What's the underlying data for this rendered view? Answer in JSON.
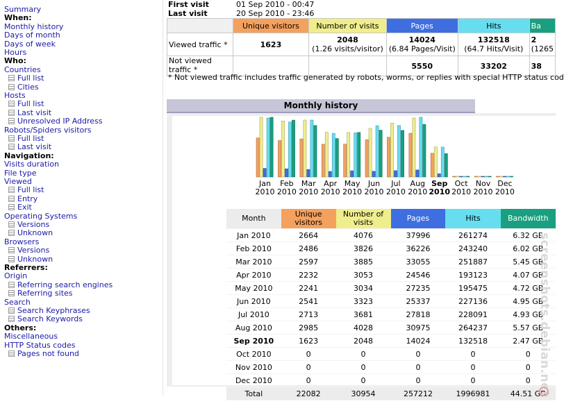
{
  "sidebar": {
    "items": [
      {
        "label": "Summary",
        "type": "link",
        "indent": 0
      },
      {
        "label": "When:",
        "type": "section",
        "indent": 0
      },
      {
        "label": "Monthly history",
        "type": "link",
        "indent": 0
      },
      {
        "label": "Days of month",
        "type": "link",
        "indent": 0
      },
      {
        "label": "Days of week",
        "type": "link",
        "indent": 0
      },
      {
        "label": "Hours",
        "type": "link",
        "indent": 0
      },
      {
        "label": "Who:",
        "type": "section",
        "indent": 0
      },
      {
        "label": "Countries",
        "type": "link",
        "indent": 0
      },
      {
        "label": "Full list",
        "type": "link",
        "indent": 1
      },
      {
        "label": "Cities",
        "type": "link",
        "indent": 1
      },
      {
        "label": "Hosts",
        "type": "link",
        "indent": 0
      },
      {
        "label": "Full list",
        "type": "link",
        "indent": 1
      },
      {
        "label": "Last visit",
        "type": "link",
        "indent": 1
      },
      {
        "label": "Unresolved IP Address",
        "type": "link",
        "indent": 1
      },
      {
        "label": "Robots/Spiders visitors",
        "type": "link",
        "indent": 0
      },
      {
        "label": "Full list",
        "type": "link",
        "indent": 1
      },
      {
        "label": "Last visit",
        "type": "link",
        "indent": 1
      },
      {
        "label": "Navigation:",
        "type": "section",
        "indent": 0
      },
      {
        "label": "Visits duration",
        "type": "link",
        "indent": 0
      },
      {
        "label": "File type",
        "type": "link",
        "indent": 0
      },
      {
        "label": "Viewed",
        "type": "link",
        "indent": 0
      },
      {
        "label": "Full list",
        "type": "link",
        "indent": 1
      },
      {
        "label": "Entry",
        "type": "link",
        "indent": 1
      },
      {
        "label": "Exit",
        "type": "link",
        "indent": 1
      },
      {
        "label": "Operating Systems",
        "type": "link",
        "indent": 0
      },
      {
        "label": "Versions",
        "type": "link",
        "indent": 1
      },
      {
        "label": "Unknown",
        "type": "link",
        "indent": 1
      },
      {
        "label": "Browsers",
        "type": "link",
        "indent": 0
      },
      {
        "label": "Versions",
        "type": "link",
        "indent": 1
      },
      {
        "label": "Unknown",
        "type": "link",
        "indent": 1
      },
      {
        "label": "Referrers:",
        "type": "section",
        "indent": 0
      },
      {
        "label": "Origin",
        "type": "link",
        "indent": 0
      },
      {
        "label": "Referring search engines",
        "type": "link",
        "indent": 1
      },
      {
        "label": "Referring sites",
        "type": "link",
        "indent": 1
      },
      {
        "label": "Search",
        "type": "link",
        "indent": 0
      },
      {
        "label": "Search Keyphrases",
        "type": "link",
        "indent": 1
      },
      {
        "label": "Search Keywords",
        "type": "link",
        "indent": 1
      },
      {
        "label": "Others:",
        "type": "section",
        "indent": 0
      },
      {
        "label": "Miscellaneous",
        "type": "link",
        "indent": 0
      },
      {
        "label": "HTTP Status codes",
        "type": "link",
        "indent": 0
      },
      {
        "label": "Pages not found",
        "type": "link",
        "indent": 1
      }
    ]
  },
  "summary": {
    "first_visit_label": "First visit",
    "first_visit_value": "01 Sep 2010 - 00:47",
    "last_visit_label": "Last visit",
    "last_visit_value": "20 Sep 2010 - 23:46",
    "columns": [
      "Unique visitors",
      "Number of visits",
      "Pages",
      "Hits",
      "Ba"
    ],
    "viewed_label": "Viewed traffic *",
    "viewed": {
      "uv": "1623",
      "nv": "2048",
      "nv_sub": "(1.26 visits/visitor)",
      "pg": "14024",
      "pg_sub": "(6.84 Pages/Visit)",
      "ht": "132518",
      "ht_sub": "(64.7 Hits/Visit)",
      "bw": "2",
      "bw_sub": "(1265"
    },
    "not_viewed_label": "Not viewed traffic *",
    "not_viewed": {
      "pg": "5550",
      "ht": "33202",
      "bw": "38"
    },
    "footnote": "* Not viewed traffic includes traffic generated by robots, worms, or replies with special HTTP status cod"
  },
  "monthly": {
    "title": "Monthly history",
    "headers": {
      "month": "Month",
      "uv": "Unique visitors",
      "nv": "Number of visits",
      "pg": "Pages",
      "ht": "Hits",
      "bw": "Bandwidth"
    },
    "rows": [
      {
        "month": "Jan 2010",
        "uv": "2664",
        "nv": "4076",
        "pg": "37996",
        "ht": "261274",
        "bw": "6.32 GB"
      },
      {
        "month": "Feb 2010",
        "uv": "2486",
        "nv": "3826",
        "pg": "36226",
        "ht": "243240",
        "bw": "6.02 GB"
      },
      {
        "month": "Mar 2010",
        "uv": "2597",
        "nv": "3885",
        "pg": "33055",
        "ht": "251887",
        "bw": "5.45 GB"
      },
      {
        "month": "Apr 2010",
        "uv": "2232",
        "nv": "3053",
        "pg": "24546",
        "ht": "193123",
        "bw": "4.07 GB"
      },
      {
        "month": "May 2010",
        "uv": "2241",
        "nv": "3034",
        "pg": "27235",
        "ht": "195475",
        "bw": "4.72 GB"
      },
      {
        "month": "Jun 2010",
        "uv": "2541",
        "nv": "3323",
        "pg": "25337",
        "ht": "227136",
        "bw": "4.95 GB"
      },
      {
        "month": "Jul 2010",
        "uv": "2713",
        "nv": "3681",
        "pg": "27818",
        "ht": "228091",
        "bw": "4.93 GB"
      },
      {
        "month": "Aug 2010",
        "uv": "2985",
        "nv": "4028",
        "pg": "30975",
        "ht": "264237",
        "bw": "5.57 GB"
      },
      {
        "month": "Sep 2010",
        "uv": "1623",
        "nv": "2048",
        "pg": "14024",
        "ht": "132518",
        "bw": "2.47 GB"
      },
      {
        "month": "Oct 2010",
        "uv": "0",
        "nv": "0",
        "pg": "0",
        "ht": "0",
        "bw": "0"
      },
      {
        "month": "Nov 2010",
        "uv": "0",
        "nv": "0",
        "pg": "0",
        "ht": "0",
        "bw": "0"
      },
      {
        "month": "Dec 2010",
        "uv": "0",
        "nv": "0",
        "pg": "0",
        "ht": "0",
        "bw": "0"
      }
    ],
    "total": {
      "label": "Total",
      "uv": "22082",
      "nv": "30954",
      "pg": "257212",
      "ht": "1996981",
      "bw": "44.51 GB"
    },
    "current_month_index": 8
  },
  "chart_data": {
    "type": "bar",
    "title": "Monthly history",
    "categories": [
      [
        "Jan",
        "2010"
      ],
      [
        "Feb",
        "2010"
      ],
      [
        "Mar",
        "2010"
      ],
      [
        "Apr",
        "2010"
      ],
      [
        "May",
        "2010"
      ],
      [
        "Jun",
        "2010"
      ],
      [
        "Jul",
        "2010"
      ],
      [
        "Aug",
        "2010"
      ],
      [
        "Sep",
        "2010"
      ],
      [
        "Oct",
        "2010"
      ],
      [
        "Nov",
        "2010"
      ],
      [
        "Dec",
        "2010"
      ]
    ],
    "highlight_category": 8,
    "series": [
      {
        "name": "Unique visitors",
        "color": "#f4a15e",
        "values": [
          2664,
          2486,
          2597,
          2232,
          2241,
          2541,
          2713,
          2985,
          1623,
          0,
          0,
          0
        ]
      },
      {
        "name": "Number of visits",
        "color": "#f0ee8c",
        "values": [
          4076,
          3826,
          3885,
          3053,
          3034,
          3323,
          3681,
          4028,
          2048,
          0,
          0,
          0
        ]
      },
      {
        "name": "Pages",
        "color": "#3f6ee0",
        "values": [
          37996,
          36226,
          33055,
          24546,
          27235,
          25337,
          27818,
          30975,
          14024,
          0,
          0,
          0
        ]
      },
      {
        "name": "Hits",
        "color": "#66def0",
        "values": [
          261274,
          243240,
          251887,
          193123,
          195475,
          227136,
          228091,
          264237,
          132518,
          0,
          0,
          0
        ]
      },
      {
        "name": "Bandwidth (GB)",
        "color": "#1aa081",
        "values": [
          6.32,
          6.02,
          5.45,
          4.07,
          4.72,
          4.95,
          4.93,
          5.57,
          2.47,
          0,
          0,
          0
        ]
      }
    ],
    "scale_note": "visitors and visits share one scale; pages and hits share one scale; bandwidth has its own scale"
  },
  "watermark": "screenshots.debian.net"
}
